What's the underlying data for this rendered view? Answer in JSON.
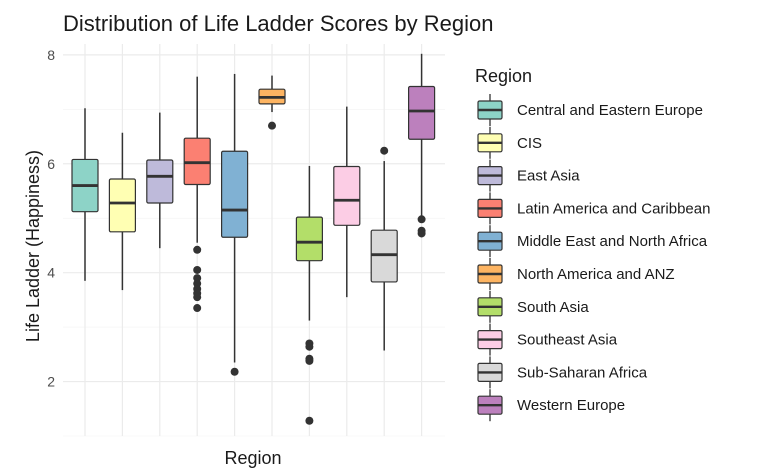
{
  "chart_data": {
    "type": "box",
    "title": "Distribution of Life Ladder Scores by Region",
    "xlabel": "Region",
    "ylabel": "Life Ladder (Happiness)",
    "ylim": [
      1.0,
      8.2
    ],
    "yticks": [
      2,
      4,
      6,
      8
    ],
    "grid": true,
    "legend": {
      "title": "Region",
      "position": "right"
    },
    "series": [
      {
        "name": "Central and Eastern Europe",
        "color": "#8DD3C7",
        "min": 3.85,
        "q1": 5.12,
        "median": 5.6,
        "q3": 6.08,
        "max": 7.02,
        "outliers": []
      },
      {
        "name": "CIS",
        "color": "#FFFFB3",
        "min": 3.68,
        "q1": 4.75,
        "median": 5.28,
        "q3": 5.72,
        "max": 6.57,
        "outliers": []
      },
      {
        "name": "East Asia",
        "color": "#BEBADA",
        "min": 4.45,
        "q1": 5.28,
        "median": 5.77,
        "q3": 6.07,
        "max": 6.94,
        "outliers": []
      },
      {
        "name": "Latin America and Caribbean",
        "color": "#FB8072",
        "min": 4.55,
        "q1": 5.62,
        "median": 6.02,
        "q3": 6.47,
        "max": 7.6,
        "outliers": [
          4.42,
          4.05,
          3.9,
          3.8,
          3.7,
          3.62,
          3.55,
          3.35
        ]
      },
      {
        "name": "Middle East and North Africa",
        "color": "#80B1D3",
        "min": 2.35,
        "q1": 4.65,
        "median": 5.15,
        "q3": 6.23,
        "max": 7.65,
        "outliers": [
          2.18
        ]
      },
      {
        "name": "North America and ANZ",
        "color": "#FDB462",
        "min": 6.95,
        "q1": 7.1,
        "median": 7.22,
        "q3": 7.37,
        "max": 7.62,
        "outliers": [
          6.7
        ]
      },
      {
        "name": "South Asia",
        "color": "#B3DE69",
        "min": 3.12,
        "q1": 4.22,
        "median": 4.56,
        "q3": 5.02,
        "max": 5.96,
        "outliers": [
          2.7,
          2.64,
          2.42,
          2.38,
          1.28
        ]
      },
      {
        "name": "Southeast Asia",
        "color": "#FCCDE5",
        "min": 3.55,
        "q1": 4.87,
        "median": 5.33,
        "q3": 5.95,
        "max": 7.05,
        "outliers": []
      },
      {
        "name": "Sub-Saharan Africa",
        "color": "#D9D9D9",
        "min": 2.57,
        "q1": 3.83,
        "median": 4.33,
        "q3": 4.78,
        "max": 6.05,
        "outliers": [
          6.24
        ]
      },
      {
        "name": "Western Europe",
        "color": "#BC80BD",
        "min": 5.05,
        "q1": 6.45,
        "median": 6.97,
        "q3": 7.42,
        "max": 8.02,
        "outliers": [
          4.98,
          4.77,
          4.72
        ]
      }
    ]
  }
}
